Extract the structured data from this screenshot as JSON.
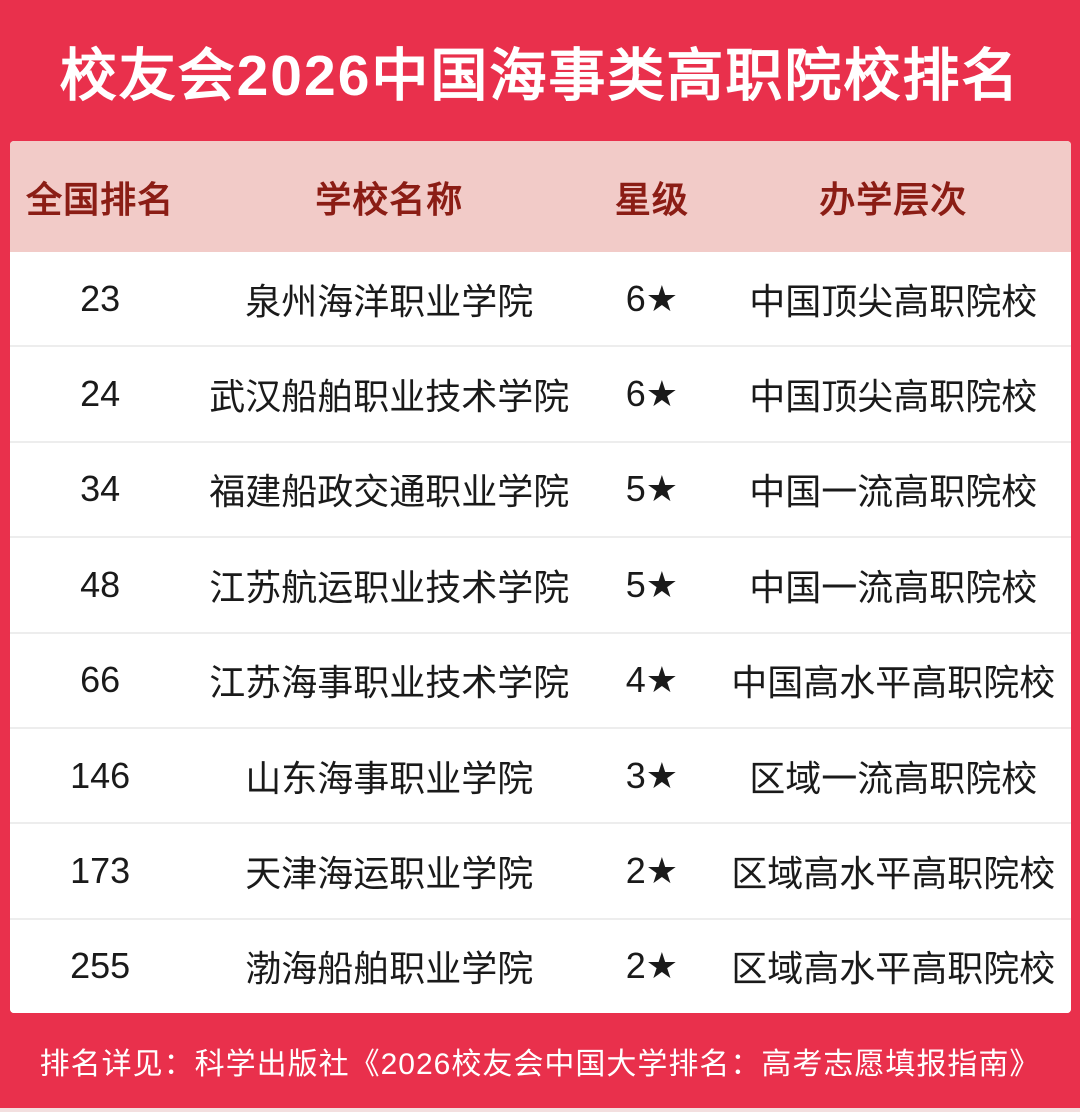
{
  "title": "校友会2026中国海事类高职院校排名",
  "table": {
    "headers": [
      "全国排名",
      "学校名称",
      "星级",
      "办学层次"
    ],
    "rows": [
      {
        "rank": "23",
        "school": "泉州海洋职业学院",
        "stars": "6★",
        "level": "中国顶尖高职院校"
      },
      {
        "rank": "24",
        "school": "武汉船舶职业技术学院",
        "stars": "6★",
        "level": "中国顶尖高职院校"
      },
      {
        "rank": "34",
        "school": "福建船政交通职业学院",
        "stars": "5★",
        "level": "中国一流高职院校"
      },
      {
        "rank": "48",
        "school": "江苏航运职业技术学院",
        "stars": "5★",
        "level": "中国一流高职院校"
      },
      {
        "rank": "66",
        "school": "江苏海事职业技术学院",
        "stars": "4★",
        "level": "中国高水平高职院校"
      },
      {
        "rank": "146",
        "school": "山东海事职业学院",
        "stars": "3★",
        "level": "区域一流高职院校"
      },
      {
        "rank": "173",
        "school": "天津海运职业学院",
        "stars": "2★",
        "level": "区域高水平高职院校"
      },
      {
        "rank": "255",
        "school": "渤海船舶职业学院",
        "stars": "2★",
        "level": "区域高水平高职院校"
      }
    ]
  },
  "footer": {
    "note": "排名详见：科学出版社《2026校友会中国大学排名：高考志愿填报指南》"
  },
  "colors": {
    "frame_red": "#E9304C",
    "header_pink": "#F2CBC8",
    "header_text": "#8B1D15",
    "body_text": "#1A1A1A",
    "row_bg": "#FFFFFF",
    "separator": "#EDEDED",
    "title_text": "#FFFFFF",
    "footer_text": "#FFFFFF"
  }
}
